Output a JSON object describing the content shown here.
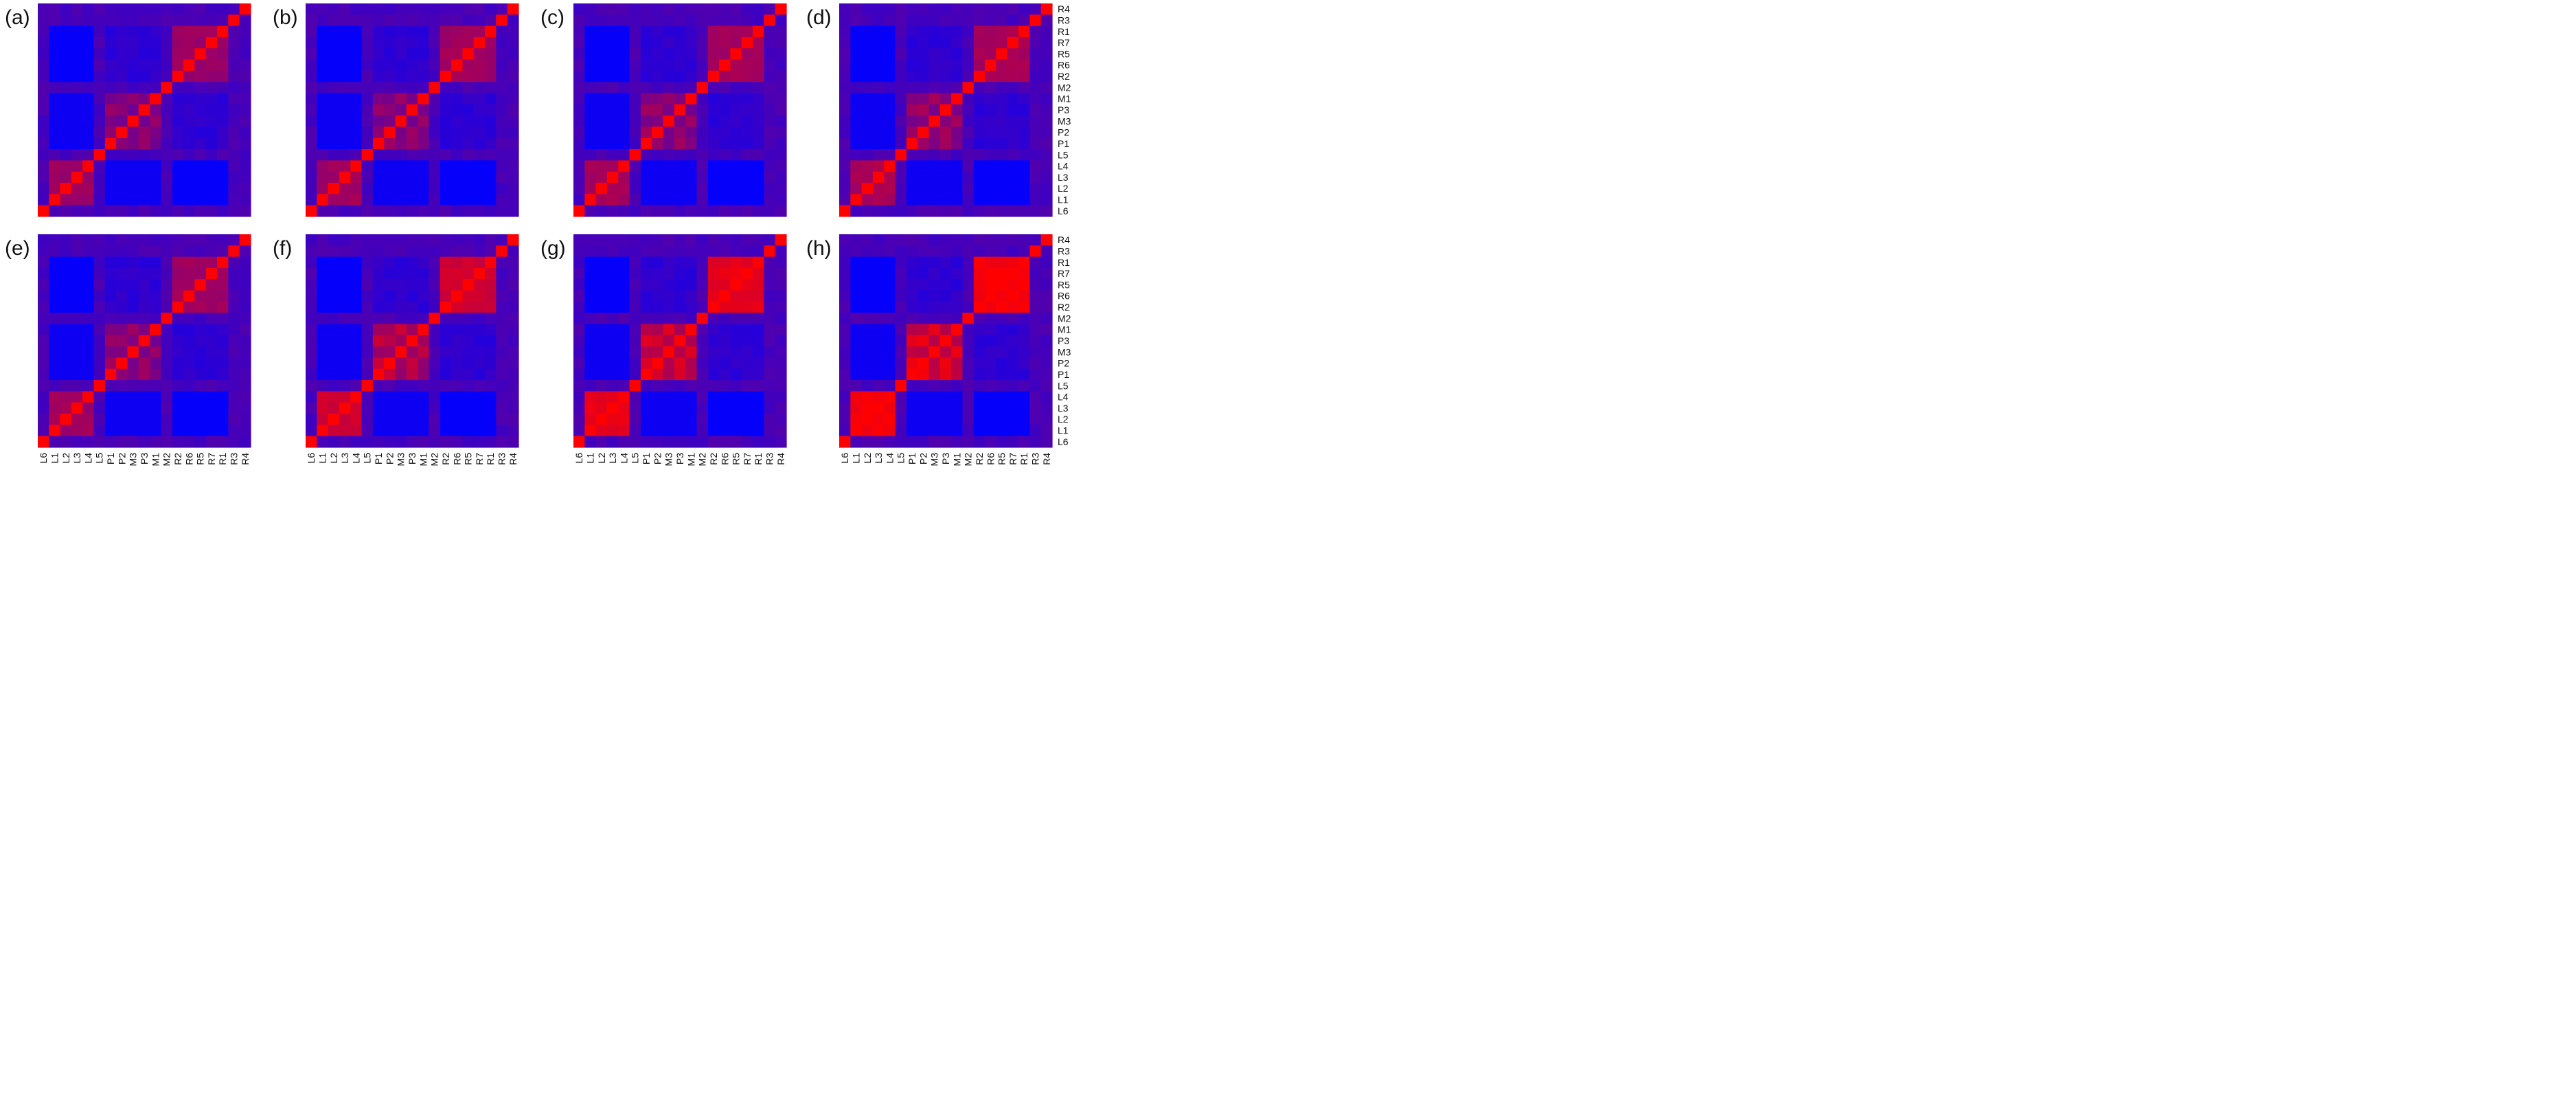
{
  "figure": {
    "panel_labels": [
      "(a)",
      "(b)",
      "(c)",
      "(d)",
      "(e)",
      "(f)",
      "(g)",
      "(h)"
    ]
  },
  "colors": {
    "low": "#0000ff",
    "high": "#ff0000",
    "background": "#ffffff",
    "label": "#111111"
  },
  "chart_data": {
    "type": "heatmap",
    "x_categories": [
      "L6",
      "L1",
      "L2",
      "L3",
      "L4",
      "L5",
      "P1",
      "P2",
      "M3",
      "P3",
      "M1",
      "M2",
      "R2",
      "R6",
      "R5",
      "R7",
      "R1",
      "R3",
      "R4"
    ],
    "y_categories_top_to_bottom": [
      "R4",
      "R3",
      "R1",
      "R7",
      "R5",
      "R6",
      "R2",
      "M2",
      "M1",
      "P3",
      "M3",
      "P2",
      "P1",
      "L5",
      "L4",
      "L3",
      "L2",
      "L1",
      "L6"
    ],
    "value_range": [
      0,
      1
    ],
    "colormap": "blue-to-red",
    "x_labels_shown_on": "bottom row of panels",
    "y_labels_shown_on": "right column of panels",
    "panels": [
      {
        "label": "(a)",
        "block_strength": 0.6,
        "diag": 1.0
      },
      {
        "label": "(b)",
        "block_strength": 0.62,
        "diag": 1.0
      },
      {
        "label": "(c)",
        "block_strength": 0.64,
        "diag": 1.0
      },
      {
        "label": "(d)",
        "block_strength": 0.66,
        "diag": 1.0
      },
      {
        "label": "(e)",
        "block_strength": 0.62,
        "diag": 1.0
      },
      {
        "label": "(f)",
        "block_strength": 0.8,
        "diag": 1.0
      },
      {
        "label": "(g)",
        "block_strength": 0.9,
        "diag": 1.0
      },
      {
        "label": "(h)",
        "block_strength": 0.97,
        "diag": 1.0
      }
    ]
  }
}
